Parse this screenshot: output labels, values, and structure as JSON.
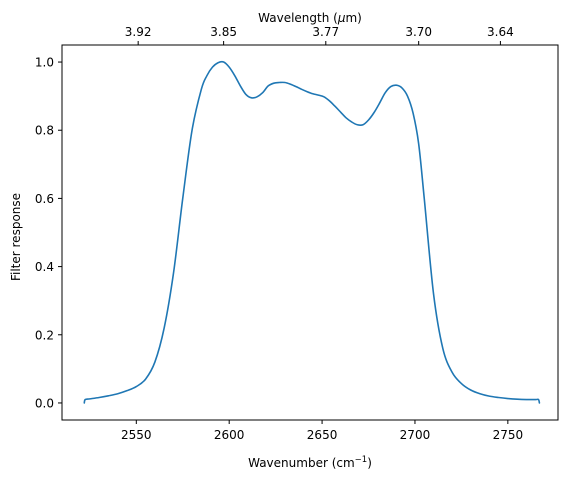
{
  "chart_data": {
    "type": "line",
    "xlabel": "Wavenumber (cm",
    "xlabel_sup": "−1",
    "xlabel_close": ")",
    "ylabel": "Filter response",
    "top_xlabel": "Wavelength (",
    "top_xlabel_mu": "μ",
    "top_xlabel_unit": "m)",
    "xlim": [
      2510,
      2777
    ],
    "ylim": [
      -0.05,
      1.05
    ],
    "x_ticks": [
      2550,
      2600,
      2650,
      2700,
      2750
    ],
    "x_tick_labels": [
      "2550",
      "2600",
      "2650",
      "2700",
      "2750"
    ],
    "y_ticks": [
      0.0,
      0.2,
      0.4,
      0.6,
      0.8,
      1.0
    ],
    "y_tick_labels": [
      "0.0",
      "0.2",
      "0.4",
      "0.6",
      "0.8",
      "1.0"
    ],
    "top_ticks_wavenumber": [
      2551,
      2597,
      2652,
      2702,
      2746
    ],
    "top_tick_labels": [
      "3.92",
      "3.85",
      "3.77",
      "3.70",
      "3.64"
    ],
    "grid": false,
    "line_color": "#1f77b4",
    "series": [
      {
        "x": [
          2522,
          2522.5,
          2525,
          2530,
          2535,
          2540,
          2545,
          2550,
          2555,
          2560,
          2565,
          2570,
          2575,
          2580,
          2585,
          2588,
          2591,
          2594,
          2597,
          2600,
          2603,
          2606,
          2609,
          2612,
          2615,
          2618,
          2621,
          2624,
          2627,
          2630,
          2633,
          2636,
          2639,
          2642,
          2645,
          2648,
          2651,
          2654,
          2657,
          2660,
          2663,
          2666,
          2669,
          2672,
          2675,
          2678,
          2681,
          2684,
          2687,
          2690,
          2693,
          2696,
          2699,
          2702,
          2705,
          2710,
          2715,
          2720,
          2725,
          2730,
          2735,
          2740,
          2745,
          2750,
          2755,
          2760,
          2765,
          2766.5,
          2767
        ],
        "y": [
          0.0,
          0.01,
          0.012,
          0.016,
          0.021,
          0.027,
          0.036,
          0.048,
          0.07,
          0.12,
          0.22,
          0.38,
          0.6,
          0.8,
          0.92,
          0.96,
          0.985,
          0.998,
          1.0,
          0.985,
          0.96,
          0.93,
          0.905,
          0.895,
          0.898,
          0.91,
          0.93,
          0.938,
          0.94,
          0.94,
          0.935,
          0.928,
          0.92,
          0.913,
          0.907,
          0.903,
          0.898,
          0.886,
          0.87,
          0.853,
          0.836,
          0.824,
          0.816,
          0.816,
          0.83,
          0.852,
          0.88,
          0.91,
          0.928,
          0.932,
          0.924,
          0.9,
          0.85,
          0.76,
          0.6,
          0.32,
          0.16,
          0.09,
          0.057,
          0.038,
          0.027,
          0.02,
          0.016,
          0.013,
          0.011,
          0.01,
          0.01,
          0.01,
          0.0
        ]
      }
    ]
  }
}
